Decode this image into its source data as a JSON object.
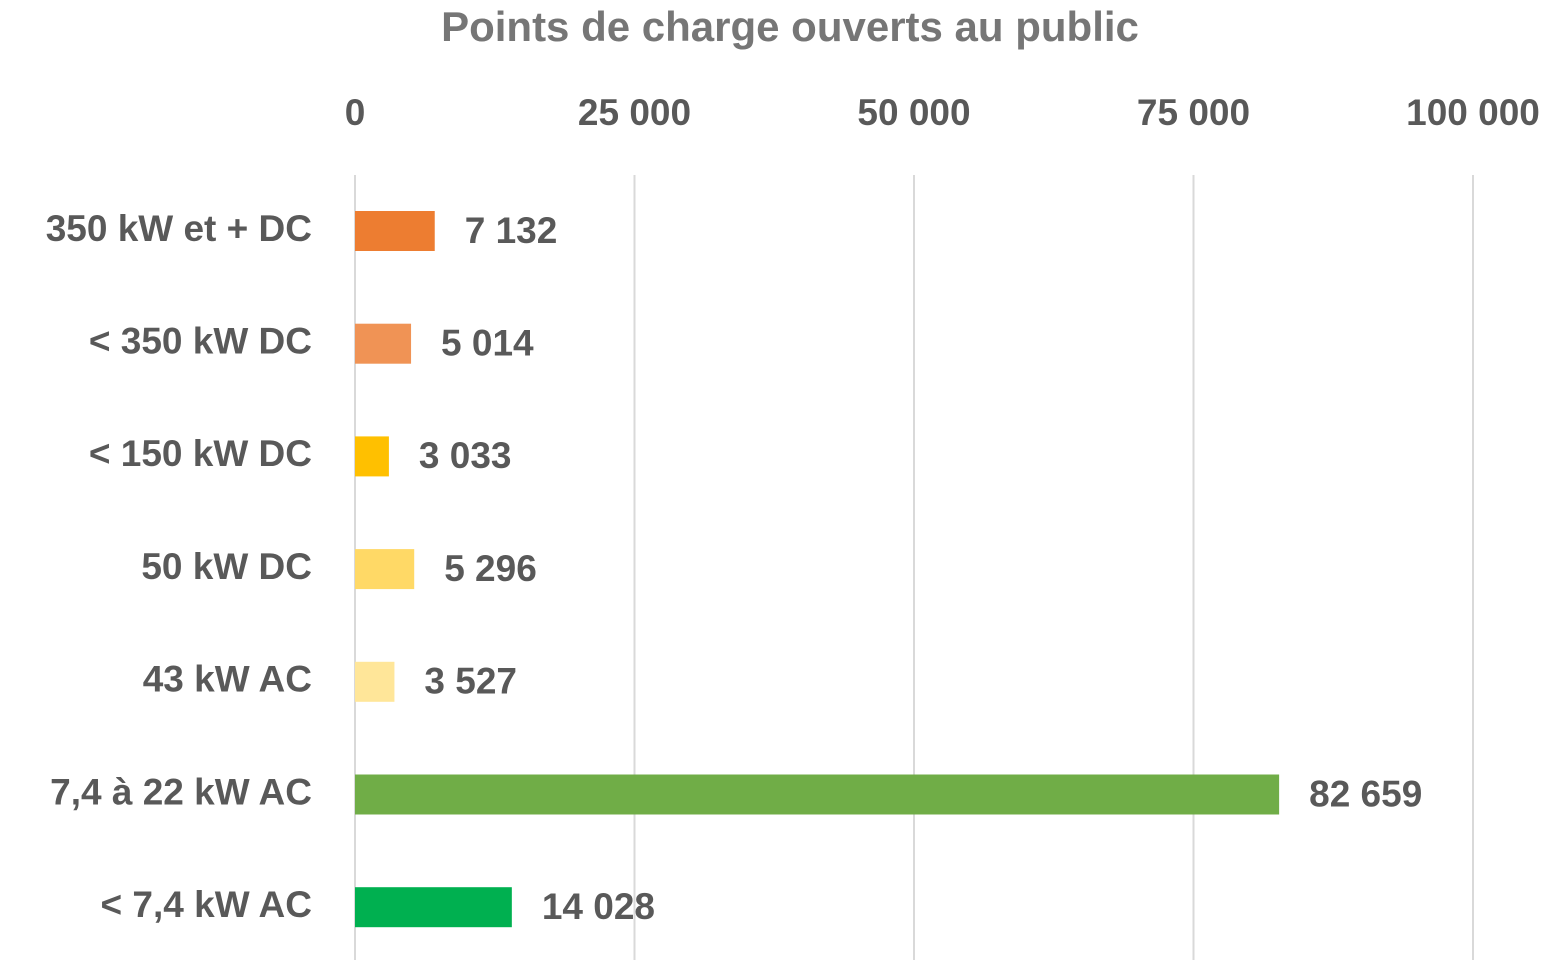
{
  "chart_data": {
    "type": "bar",
    "orientation": "horizontal",
    "title": "Points de charge ouverts au public",
    "categories": [
      "350 kW et + DC",
      "< 350 kW DC",
      "< 150 kW DC",
      "50 kW DC",
      "43 kW AC",
      "7,4 à 22 kW AC",
      "< 7,4 kW AC"
    ],
    "values": [
      7132,
      5014,
      3033,
      5296,
      3527,
      82659,
      14028
    ],
    "value_labels": [
      "7 132",
      "5 014",
      "3 033",
      "5 296",
      "3 527",
      "82 659",
      "14 028"
    ],
    "colors": [
      "#ed7d31",
      "#f09355",
      "#ffc000",
      "#ffd966",
      "#ffe699",
      "#70ad47",
      "#00b050"
    ],
    "xlim": [
      0,
      100000
    ],
    "xticks": [
      0,
      {
        "value": 25000,
        "label": "25 000"
      },
      {
        "value": 50000,
        "label": "50 000"
      },
      {
        "value": 75000,
        "label": "75 000"
      },
      {
        "value": 100000,
        "label": "100 000"
      }
    ],
    "grid": true
  }
}
